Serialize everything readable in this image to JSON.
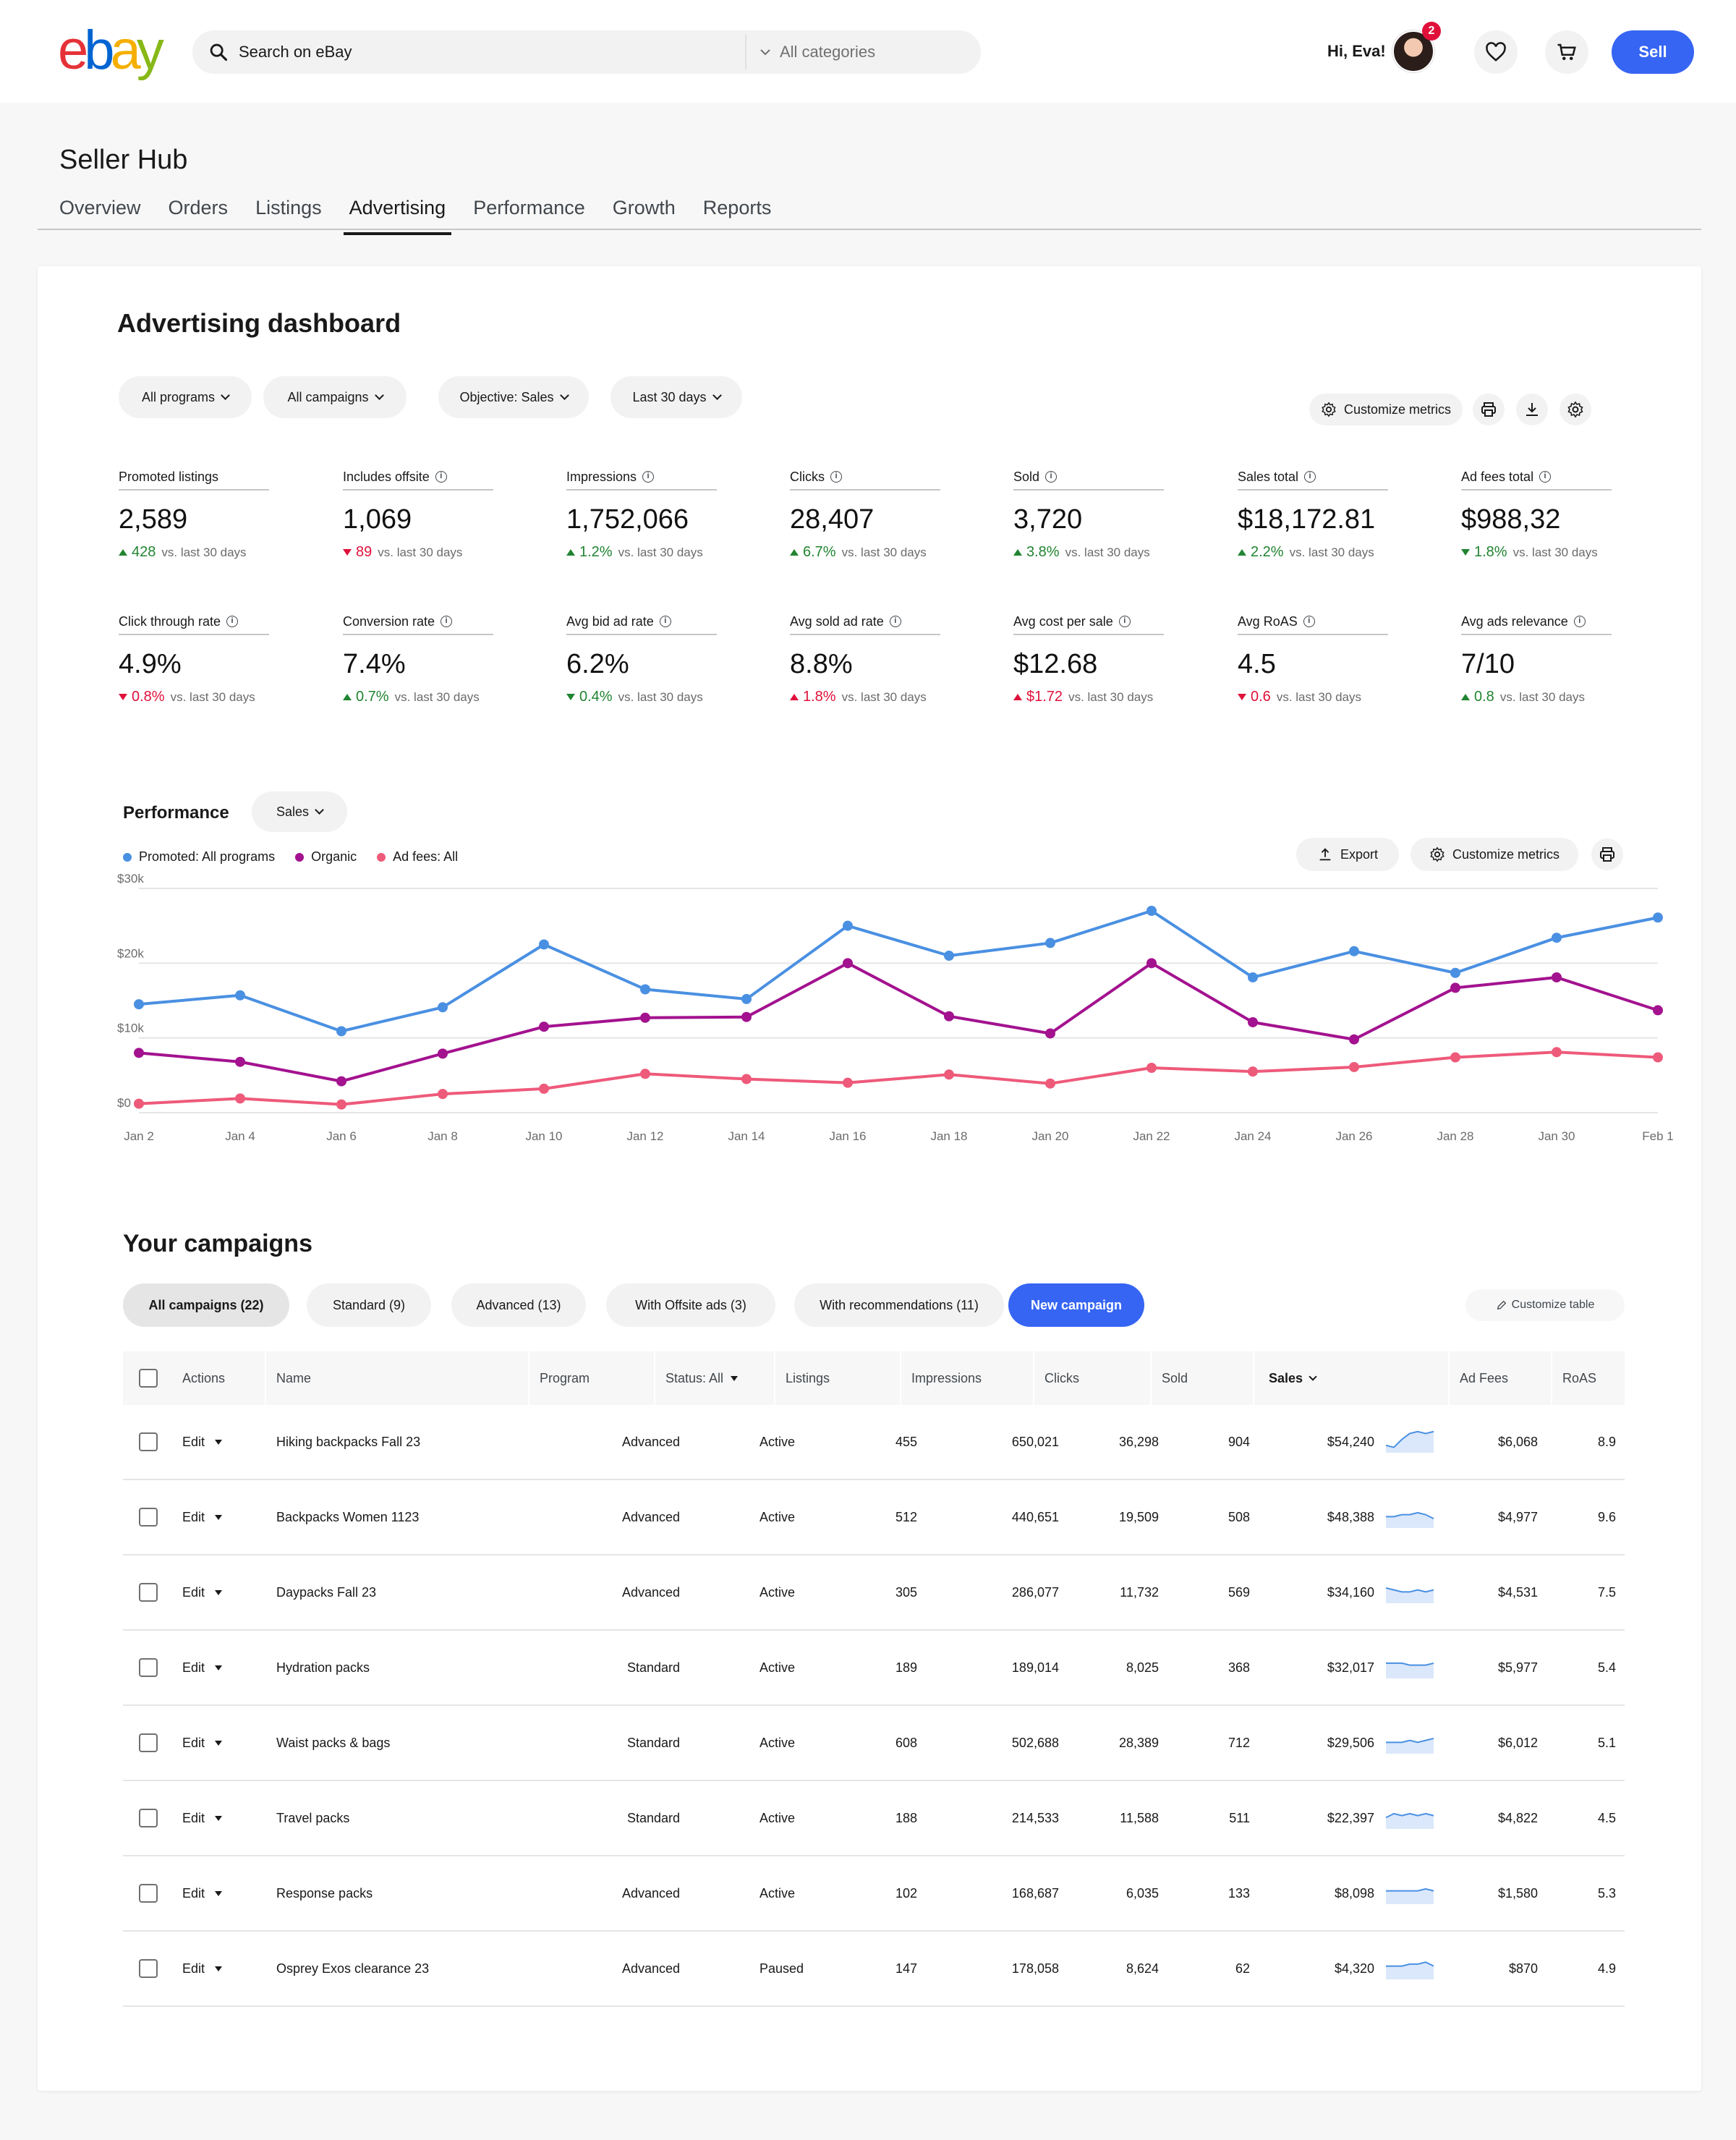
{
  "header": {
    "search_placeholder": "Search on eBay",
    "category": "All categories",
    "greeting": "Hi, Eva!",
    "notifications": "2",
    "sell_label": "Sell"
  },
  "hub": {
    "title": "Seller Hub",
    "tabs": [
      "Overview",
      "Orders",
      "Listings",
      "Advertising",
      "Performance",
      "Growth",
      "Reports"
    ],
    "active_tab": "Advertising"
  },
  "dashboard": {
    "title": "Advertising dashboard",
    "filters": [
      "All programs",
      "All campaigns",
      "Objective: Sales",
      "Last 30 days"
    ],
    "customize_label": "Customize metrics",
    "metrics": [
      {
        "label": "Promoted listings",
        "value": "2,589",
        "change": "428",
        "dir": "up",
        "vs": "vs. last 30 days",
        "info": false
      },
      {
        "label": "Includes offsite",
        "value": "1,069",
        "change": "89",
        "dir": "down",
        "vs": "vs. last 30 days",
        "info": true
      },
      {
        "label": "Impressions",
        "value": "1,752,066",
        "change": "1.2%",
        "dir": "up",
        "vs": "vs. last 30 days",
        "info": true
      },
      {
        "label": "Clicks",
        "value": "28,407",
        "change": "6.7%",
        "dir": "up",
        "vs": "vs. last 30 days",
        "info": true
      },
      {
        "label": "Sold",
        "value": "3,720",
        "change": "3.8%",
        "dir": "up",
        "vs": "vs. last 30 days",
        "info": true
      },
      {
        "label": "Sales total",
        "value": "$18,172.81",
        "change": "2.2%",
        "dir": "up",
        "vs": "vs. last 30 days",
        "info": true
      },
      {
        "label": "Ad fees total",
        "value": "$988,32",
        "change": "1.8%",
        "dir": "down-green",
        "vs": "vs. last 30 days",
        "info": true
      },
      {
        "label": "Click through rate",
        "value": "4.9%",
        "change": "0.8%",
        "dir": "down",
        "vs": "vs. last 30 days",
        "info": true
      },
      {
        "label": "Conversion rate",
        "value": "7.4%",
        "change": "0.7%",
        "dir": "up",
        "vs": "vs. last 30 days",
        "info": true
      },
      {
        "label": "Avg bid ad rate",
        "value": "6.2%",
        "change": "0.4%",
        "dir": "down-green",
        "vs": "vs. last 30 days",
        "info": true
      },
      {
        "label": "Avg sold ad rate",
        "value": "8.8%",
        "change": "1.8%",
        "dir": "up-red",
        "vs": "vs. last 30 days",
        "info": true
      },
      {
        "label": "Avg cost per sale",
        "value": "$12.68",
        "change": "$1.72",
        "dir": "up-red",
        "vs": "vs. last 30 days",
        "info": true
      },
      {
        "label": "Avg RoAS",
        "value": "4.5",
        "change": "0.6",
        "dir": "down",
        "vs": "vs. last 30 days",
        "info": true
      },
      {
        "label": "Avg ads relevance",
        "value": "7/10",
        "change": "0.8",
        "dir": "up",
        "vs": "vs. last 30 days",
        "info": true
      }
    ]
  },
  "performance": {
    "title": "Performance",
    "metric_select": "Sales",
    "export_label": "Export",
    "customize_label": "Customize metrics",
    "legend": [
      {
        "name": "Promoted: All programs",
        "color": "#4a90e2"
      },
      {
        "name": "Organic",
        "color": "#a3128f"
      },
      {
        "name": "Ad fees: All",
        "color": "#ee5a7a"
      }
    ]
  },
  "chart_data": {
    "type": "line",
    "title": "",
    "xlabel": "",
    "ylabel": "",
    "x": [
      "Jan 2",
      "Jan 3",
      "Jan 4",
      "Jan 5",
      "Jan 6",
      "Jan 7",
      "Jan 8",
      "Jan 9",
      "Jan 10",
      "Jan 11",
      "Jan 12",
      "Jan 13",
      "Jan 14",
      "Jan 15",
      "Jan 16",
      "Jan 17",
      "Jan 18",
      "Jan 19",
      "Jan 20",
      "Jan 21",
      "Jan 22",
      "Jan 23",
      "Jan 24",
      "Jan 25",
      "Jan 26",
      "Jan 27",
      "Jan 28",
      "Jan 29",
      "Jan 30",
      "Jan 31",
      "Feb 1"
    ],
    "x_tick_labels": [
      "Jan 2",
      "Jan 4",
      "Jan 6",
      "Jan 8",
      "Jan 10",
      "Jan 12",
      "Jan 14",
      "Jan 16",
      "Jan 18",
      "Jan 20",
      "Jan 22",
      "Jan 24",
      "Jan 26",
      "Jan 28",
      "Jan 30",
      "Feb 1"
    ],
    "y_tick_labels": [
      "$0",
      "$10k",
      "$20k",
      "$30k"
    ],
    "ylim": [
      0,
      30000
    ],
    "grid": true,
    "series": [
      {
        "name": "Promoted: All programs",
        "color": "#4a90e2",
        "points": [
          [
            "Jan 2",
            14500
          ],
          [
            "Jan 4",
            15700
          ],
          [
            "Jan 6",
            10900
          ],
          [
            "Jan 8",
            14100
          ],
          [
            "Jan 10",
            22500
          ],
          [
            "Jan 12",
            16500
          ],
          [
            "Jan 14",
            15200
          ],
          [
            "Jan 16",
            25000
          ],
          [
            "Jan 18",
            21000
          ],
          [
            "Jan 20",
            22700
          ],
          [
            "Jan 22",
            27000
          ],
          [
            "Jan 24",
            18100
          ],
          [
            "Jan 26",
            21600
          ],
          [
            "Jan 28",
            18700
          ],
          [
            "Jan 30",
            23400
          ],
          [
            "Feb 1",
            26100
          ]
        ]
      },
      {
        "name": "Organic",
        "color": "#a3128f",
        "points": [
          [
            "Jan 2",
            8000
          ],
          [
            "Jan 4",
            6800
          ],
          [
            "Jan 6",
            4200
          ],
          [
            "Jan 8",
            7900
          ],
          [
            "Jan 10",
            11500
          ],
          [
            "Jan 12",
            12700
          ],
          [
            "Jan 14",
            12800
          ],
          [
            "Jan 16",
            20000
          ],
          [
            "Jan 18",
            12900
          ],
          [
            "Jan 20",
            10600
          ],
          [
            "Jan 22",
            20000
          ],
          [
            "Jan 24",
            12100
          ],
          [
            "Jan 26",
            9800
          ],
          [
            "Jan 28",
            16700
          ],
          [
            "Jan 30",
            18100
          ],
          [
            "Feb 1",
            13700
          ]
        ]
      },
      {
        "name": "Ad fees: All",
        "color": "#ee5a7a",
        "points": [
          [
            "Jan 2",
            1200
          ],
          [
            "Jan 4",
            1900
          ],
          [
            "Jan 6",
            1100
          ],
          [
            "Jan 8",
            2500
          ],
          [
            "Jan 10",
            3200
          ],
          [
            "Jan 12",
            5200
          ],
          [
            "Jan 14",
            4500
          ],
          [
            "Jan 16",
            4000
          ],
          [
            "Jan 18",
            5100
          ],
          [
            "Jan 20",
            3900
          ],
          [
            "Jan 22",
            6000
          ],
          [
            "Jan 24",
            5500
          ],
          [
            "Jan 26",
            6100
          ],
          [
            "Jan 28",
            7400
          ],
          [
            "Jan 30",
            8100
          ],
          [
            "Feb 1",
            7400
          ]
        ]
      }
    ]
  },
  "campaigns": {
    "title": "Your campaigns",
    "tabs": [
      "All campaigns (22)",
      "Standard (9)",
      "Advanced (13)",
      "With Offsite ads (3)",
      "With recommendations (11)"
    ],
    "new_label": "New campaign",
    "customize_table": "Customize table",
    "columns": [
      "Actions",
      "Name",
      "Program",
      "Status: All",
      "Listings",
      "Impressions",
      "Clicks",
      "Sold",
      "Sales",
      "Ad Fees",
      "RoAS"
    ],
    "edit_label": "Edit",
    "rows": [
      {
        "name": "Hiking backpacks Fall 23",
        "program": "Advanced",
        "status": "Active",
        "listings": "455",
        "impressions": "650,021",
        "clicks": "36,298",
        "sold": "904",
        "sales": "$54,240",
        "fees": "$6,068",
        "roas": "8.9",
        "trend": [
          3,
          2,
          6,
          9,
          10,
          9,
          10
        ]
      },
      {
        "name": "Backpacks Women 1123",
        "program": "Advanced",
        "status": "Active",
        "listings": "512",
        "impressions": "440,651",
        "clicks": "19,509",
        "sold": "508",
        "sales": "$48,388",
        "fees": "$4,977",
        "roas": "9.6",
        "trend": [
          5,
          5,
          6,
          6,
          7,
          6,
          4
        ]
      },
      {
        "name": "Daypacks Fall 23",
        "program": "Advanced",
        "status": "Active",
        "listings": "305",
        "impressions": "286,077",
        "clicks": "11,732",
        "sold": "569",
        "sales": "$34,160",
        "fees": "$4,531",
        "roas": "7.5",
        "trend": [
          7,
          6,
          5,
          5,
          6,
          5,
          6
        ]
      },
      {
        "name": "Hydration packs",
        "program": "Standard",
        "status": "Active",
        "listings": "189",
        "impressions": "189,014",
        "clicks": "8,025",
        "sold": "368",
        "sales": "$32,017",
        "fees": "$5,977",
        "roas": "5.4",
        "trend": [
          7,
          7,
          7,
          6,
          6,
          6,
          7
        ]
      },
      {
        "name": "Waist packs & bags",
        "program": "Standard",
        "status": "Active",
        "listings": "608",
        "impressions": "502,688",
        "clicks": "28,389",
        "sold": "712",
        "sales": "$29,506",
        "fees": "$6,012",
        "roas": "5.1",
        "trend": [
          5,
          5,
          5,
          6,
          5,
          6,
          7
        ]
      },
      {
        "name": "Travel packs",
        "program": "Standard",
        "status": "Active",
        "listings": "188",
        "impressions": "214,533",
        "clicks": "11,588",
        "sold": "511",
        "sales": "$22,397",
        "fees": "$4,822",
        "roas": "4.5",
        "trend": [
          5,
          7,
          6,
          7,
          6,
          7,
          6
        ]
      },
      {
        "name": "Response packs",
        "program": "Advanced",
        "status": "Active",
        "listings": "102",
        "impressions": "168,687",
        "clicks": "6,035",
        "sold": "133",
        "sales": "$8,098",
        "fees": "$1,580",
        "roas": "5.3",
        "trend": [
          6,
          6,
          6,
          6,
          6,
          7,
          6
        ]
      },
      {
        "name": "Osprey Exos clearance 23",
        "program": "Advanced",
        "status": "Paused",
        "listings": "147",
        "impressions": "178,058",
        "clicks": "8,624",
        "sold": "62",
        "sales": "$4,320",
        "fees": "$870",
        "roas": "4.9",
        "trend": [
          6,
          6,
          6,
          7,
          7,
          8,
          6
        ]
      }
    ]
  }
}
